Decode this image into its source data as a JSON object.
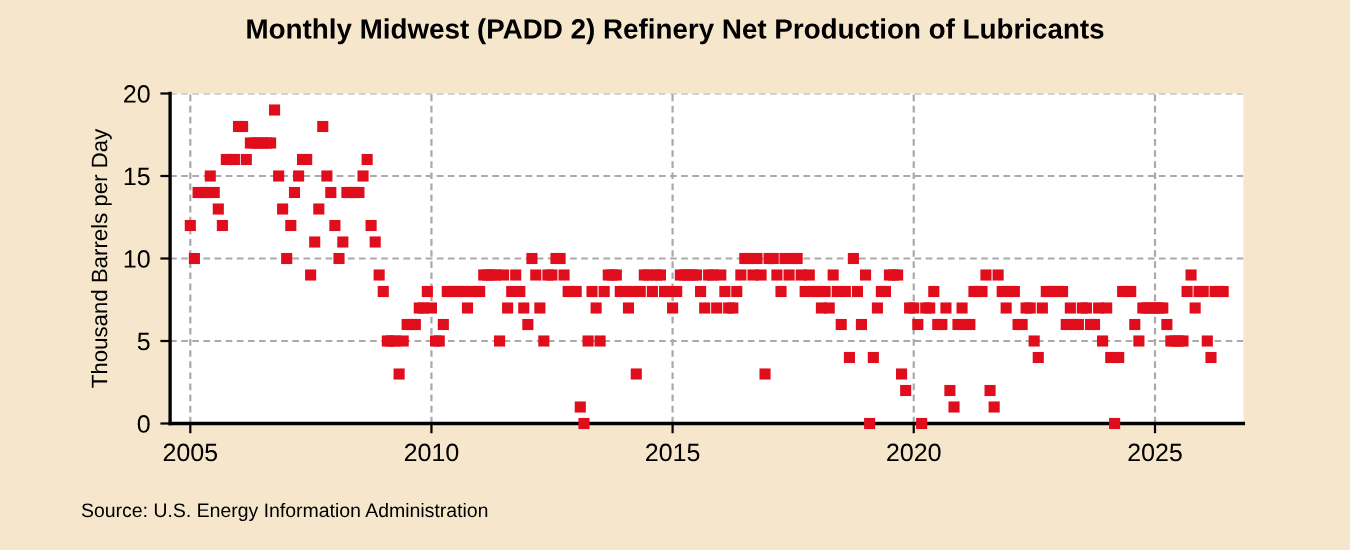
{
  "chart_data": {
    "type": "scatter",
    "title": "Monthly Midwest (PADD 2) Refinery Net Production of Lubricants",
    "ylabel": "Thousand Barrels per Day",
    "annotations": [
      "Source: U.S. Energy Information Administration"
    ],
    "x": [
      "2005-01",
      "2005-02",
      "2005-03",
      "2005-04",
      "2005-05",
      "2005-06",
      "2005-07",
      "2005-08",
      "2005-09",
      "2005-10",
      "2005-11",
      "2005-12",
      "2006-01",
      "2006-02",
      "2006-03",
      "2006-04",
      "2006-05",
      "2006-06",
      "2006-07",
      "2006-08",
      "2006-09",
      "2006-10",
      "2006-11",
      "2006-12",
      "2007-01",
      "2007-02",
      "2007-03",
      "2007-04",
      "2007-05",
      "2007-06",
      "2007-07",
      "2007-08",
      "2007-09",
      "2007-10",
      "2007-11",
      "2007-12",
      "2008-01",
      "2008-02",
      "2008-03",
      "2008-04",
      "2008-05",
      "2008-06",
      "2008-07",
      "2008-08",
      "2008-09",
      "2008-10",
      "2008-11",
      "2008-12",
      "2009-01",
      "2009-02",
      "2009-03",
      "2009-04",
      "2009-05",
      "2009-06",
      "2009-07",
      "2009-08",
      "2009-09",
      "2009-10",
      "2009-11",
      "2009-12",
      "2010-01",
      "2010-02",
      "2010-03",
      "2010-04",
      "2010-05",
      "2010-06",
      "2010-07",
      "2010-08",
      "2010-09",
      "2010-10",
      "2010-11",
      "2010-12",
      "2011-01",
      "2011-02",
      "2011-03",
      "2011-04",
      "2011-05",
      "2011-06",
      "2011-07",
      "2011-08",
      "2011-09",
      "2011-10",
      "2011-11",
      "2011-12",
      "2012-01",
      "2012-02",
      "2012-03",
      "2012-04",
      "2012-05",
      "2012-06",
      "2012-07",
      "2012-08",
      "2012-09",
      "2012-10",
      "2012-11",
      "2012-12",
      "2013-01",
      "2013-02",
      "2013-03",
      "2013-04",
      "2013-05",
      "2013-06",
      "2013-07",
      "2013-08",
      "2013-09",
      "2013-10",
      "2013-11",
      "2013-12",
      "2014-01",
      "2014-02",
      "2014-03",
      "2014-04",
      "2014-05",
      "2014-06",
      "2014-07",
      "2014-08",
      "2014-09",
      "2014-10",
      "2014-11",
      "2014-12",
      "2015-01",
      "2015-02",
      "2015-03",
      "2015-04",
      "2015-05",
      "2015-06",
      "2015-07",
      "2015-08",
      "2015-09",
      "2015-10",
      "2015-11",
      "2015-12",
      "2016-01",
      "2016-02",
      "2016-03",
      "2016-04",
      "2016-05",
      "2016-06",
      "2016-07",
      "2016-08",
      "2016-09",
      "2016-10",
      "2016-11",
      "2016-12",
      "2017-01",
      "2017-02",
      "2017-03",
      "2017-04",
      "2017-05",
      "2017-06",
      "2017-07",
      "2017-08",
      "2017-09",
      "2017-10",
      "2017-11",
      "2017-12",
      "2018-01",
      "2018-02",
      "2018-03",
      "2018-04",
      "2018-05",
      "2018-06",
      "2018-07",
      "2018-08",
      "2018-09",
      "2018-10",
      "2018-11",
      "2018-12",
      "2019-01",
      "2019-02",
      "2019-03",
      "2019-04",
      "2019-05",
      "2019-06",
      "2019-07",
      "2019-08",
      "2019-09",
      "2019-10",
      "2019-11",
      "2019-12",
      "2020-01",
      "2020-02",
      "2020-03",
      "2020-04",
      "2020-05",
      "2020-06",
      "2020-07",
      "2020-08",
      "2020-09",
      "2020-10",
      "2020-11",
      "2020-12",
      "2021-01",
      "2021-02",
      "2021-03",
      "2021-04",
      "2021-05",
      "2021-06",
      "2021-07",
      "2021-08",
      "2021-09",
      "2021-10",
      "2021-11",
      "2021-12",
      "2022-01",
      "2022-02",
      "2022-03",
      "2022-04",
      "2022-05",
      "2022-06",
      "2022-07",
      "2022-08",
      "2022-09",
      "2022-10",
      "2022-11",
      "2022-12",
      "2023-01",
      "2023-02",
      "2023-03",
      "2023-04",
      "2023-05",
      "2023-06",
      "2023-07",
      "2023-08",
      "2023-09",
      "2023-10",
      "2023-11",
      "2023-12",
      "2024-01",
      "2024-02",
      "2024-03",
      "2024-04",
      "2024-05",
      "2024-06",
      "2024-07",
      "2024-08",
      "2024-09",
      "2024-10",
      "2024-11",
      "2024-12",
      "2025-01",
      "2025-02",
      "2025-03",
      "2025-04",
      "2025-05",
      "2025-06",
      "2025-07",
      "2025-08",
      "2025-09",
      "2025-10",
      "2025-11",
      "2025-12",
      "2026-01",
      "2026-02",
      "2026-03",
      "2026-04",
      "2026-05",
      "2026-06"
    ],
    "series": [
      {
        "color": "#e00d1c",
        "values": [
          12,
          10,
          14,
          14,
          14,
          15,
          14,
          13,
          12,
          16,
          16,
          16,
          18,
          18,
          16,
          17,
          17,
          17,
          17,
          17,
          17,
          19,
          15,
          13,
          10,
          12,
          14,
          15,
          16,
          16,
          9,
          11,
          13,
          18,
          15,
          14,
          12,
          10,
          11,
          14,
          14,
          14,
          14,
          15,
          16,
          12,
          11,
          9,
          8,
          5,
          5,
          5,
          3,
          5,
          6,
          6,
          6,
          7,
          7,
          8,
          7,
          5,
          5,
          6,
          8,
          8,
          8,
          8,
          8,
          7,
          8,
          8,
          8,
          9,
          9,
          9,
          9,
          5,
          9,
          7,
          8,
          9,
          8,
          7,
          6,
          10,
          9,
          7,
          5,
          9,
          9,
          10,
          10,
          9,
          8,
          8,
          8,
          1,
          0,
          5,
          8,
          7,
          5,
          8,
          9,
          9,
          9,
          8,
          8,
          7,
          8,
          3,
          8,
          9,
          9,
          8,
          9,
          9,
          8,
          8,
          7,
          8,
          9,
          9,
          9,
          9,
          9,
          8,
          7,
          9,
          9,
          7,
          9,
          8,
          7,
          7,
          8,
          9,
          10,
          10,
          9,
          10,
          9,
          3,
          10,
          10,
          9,
          8,
          10,
          9,
          10,
          10,
          9,
          8,
          9,
          8,
          8,
          7,
          8,
          7,
          9,
          8,
          6,
          8,
          4,
          10,
          8,
          6,
          9,
          0,
          4,
          7,
          8,
          8,
          9,
          9,
          9,
          3,
          2,
          7,
          7,
          6,
          0,
          7,
          7,
          8,
          6,
          6,
          7,
          2,
          1,
          6,
          7,
          6,
          6,
          8,
          8,
          8,
          9,
          2,
          1,
          9,
          8,
          7,
          8,
          8,
          6,
          6,
          7,
          7,
          5,
          4,
          7,
          8,
          8,
          8,
          8,
          8,
          6,
          7,
          6,
          6,
          7,
          7,
          6,
          6,
          7,
          5,
          7,
          4,
          0,
          4,
          8,
          8,
          8,
          6,
          5,
          7,
          7,
          7,
          7,
          7,
          7,
          6,
          5,
          5,
          5,
          5,
          8,
          9,
          7,
          8,
          8,
          5,
          4,
          8,
          8,
          8
        ]
      }
    ],
    "xlim": [
      "2004-08",
      "2026-11"
    ],
    "xticks": [
      {
        "value": "2005-01",
        "label": "2005"
      },
      {
        "value": "2010-01",
        "label": "2010"
      },
      {
        "value": "2015-01",
        "label": "2015"
      },
      {
        "value": "2020-01",
        "label": "2020"
      },
      {
        "value": "2025-01",
        "label": "2025"
      }
    ],
    "ylim": [
      0,
      20
    ],
    "yticks": [
      0,
      5,
      10,
      15,
      20
    ],
    "grid": true,
    "marker": "square",
    "legend": false
  }
}
